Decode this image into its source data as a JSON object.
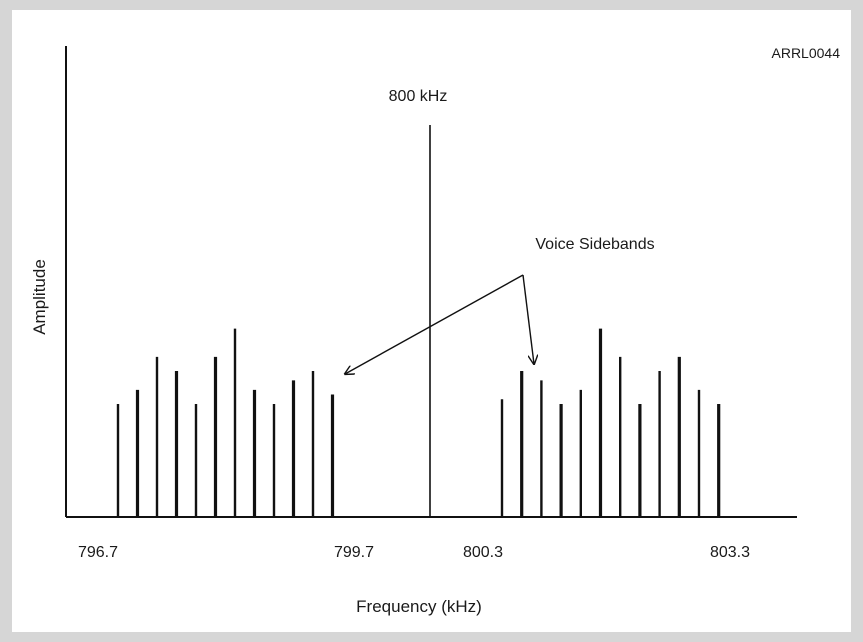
{
  "chart_data": {
    "type": "bar",
    "stamp": "ARRL0044",
    "xlabel": "Frequency (kHz)",
    "ylabel": "Amplitude",
    "carrier_label": "800 kHz",
    "annotation": "Voice Sidebands",
    "carrier": {
      "x": 800,
      "amplitude": 0.96
    },
    "tick_labels": [
      {
        "x": 796.7,
        "text": "796.7"
      },
      {
        "x": 799.7,
        "text": "799.7"
      },
      {
        "x": 800.3,
        "text": "800.3"
      },
      {
        "x": 803.3,
        "text": "803.3"
      }
    ],
    "series": [
      {
        "x": [
          796.7,
          796.9,
          797.1,
          797.3,
          797.5,
          797.7,
          797.9,
          798.1,
          798.3,
          798.5,
          798.7,
          798.9,
          799.1
        ],
        "values": [
          0.24,
          0.27,
          0.34,
          0.31,
          0.24,
          0.34,
          0.4,
          0.27,
          0.24,
          0.29,
          0.31,
          0.26,
          0.0
        ]
      },
      {
        "x": [
          800.3,
          800.5,
          800.7,
          800.9,
          801.1,
          801.3,
          801.5,
          801.7,
          801.9,
          802.1,
          802.3,
          802.5,
          802.7
        ],
        "values": [
          0.25,
          0.31,
          0.29,
          0.24,
          0.27,
          0.4,
          0.34,
          0.24,
          0.31,
          0.34,
          0.27,
          0.24,
          0.0
        ]
      }
    ],
    "ylim": [
      0,
      1
    ],
    "xlim": [
      796.0,
      804.0
    ],
    "grid": false
  }
}
